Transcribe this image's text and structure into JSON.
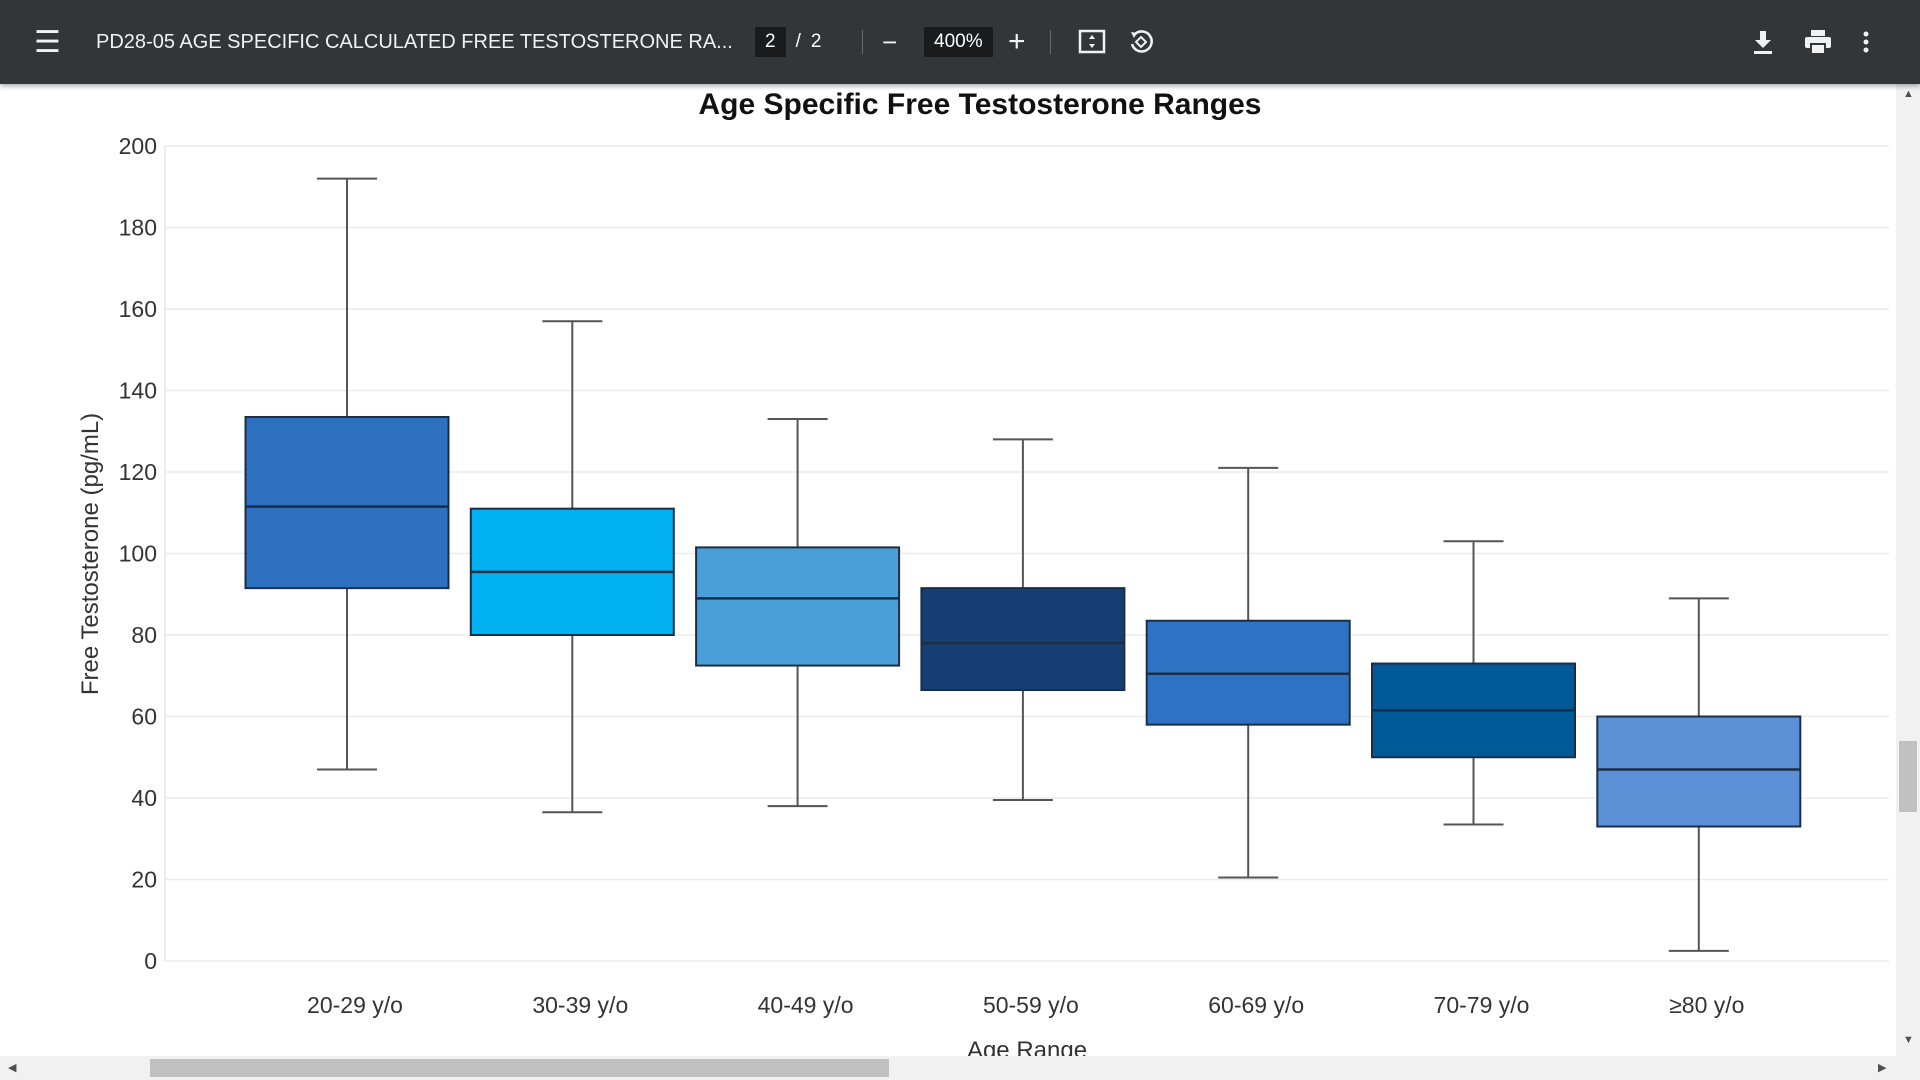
{
  "toolbar": {
    "document_title": "PD28-05   AGE SPECIFIC CALCULATED FREE TESTOSTERONE RA...",
    "current_page": "2",
    "page_separator": "/",
    "total_pages": "2",
    "zoom_level": "400%",
    "icons": [
      "menu-icon",
      "zoom-out-icon",
      "zoom-in-icon",
      "fit-page-icon",
      "rotate-icon",
      "download-icon",
      "print-icon",
      "more-options-icon"
    ]
  },
  "chart_data": {
    "type": "boxplot",
    "title": "Age Specific Free Testosterone Ranges",
    "xlabel": "Age Range",
    "ylabel": "Free Testosterone (pg/mL)",
    "ylim": [
      0,
      200
    ],
    "yticks": [
      0,
      20,
      40,
      60,
      80,
      100,
      120,
      140,
      160,
      180,
      200
    ],
    "grid": true,
    "categories": [
      "20-29 y/o",
      "30-39 y/o",
      "40-49 y/o",
      "50-59 y/o",
      "60-69 y/o",
      "70-79 y/o",
      "≥80 y/o"
    ],
    "boxes": [
      {
        "min": 47,
        "q1": 91.5,
        "median": 111.5,
        "q3": 133.5,
        "max": 192,
        "color": "#2e70c0"
      },
      {
        "min": 36.5,
        "q1": 80,
        "median": 95.5,
        "q3": 111,
        "max": 157,
        "color": "#00b0f0"
      },
      {
        "min": 38,
        "q1": 72.5,
        "median": 89,
        "q3": 101.5,
        "max": 133,
        "color": "#4a9fd8"
      },
      {
        "min": 39.5,
        "q1": 66.5,
        "median": 78,
        "q3": 91.5,
        "max": 128,
        "color": "#163e72"
      },
      {
        "min": 20.5,
        "q1": 58,
        "median": 70.5,
        "q3": 83.5,
        "max": 121,
        "color": "#2e72c4"
      },
      {
        "min": 33.5,
        "q1": 50,
        "median": 61.5,
        "q3": 73,
        "max": 103,
        "color": "#005a98"
      },
      {
        "min": 2.5,
        "q1": 33,
        "median": 47,
        "q3": 60,
        "max": 89,
        "color": "#5b8fd6"
      }
    ]
  }
}
